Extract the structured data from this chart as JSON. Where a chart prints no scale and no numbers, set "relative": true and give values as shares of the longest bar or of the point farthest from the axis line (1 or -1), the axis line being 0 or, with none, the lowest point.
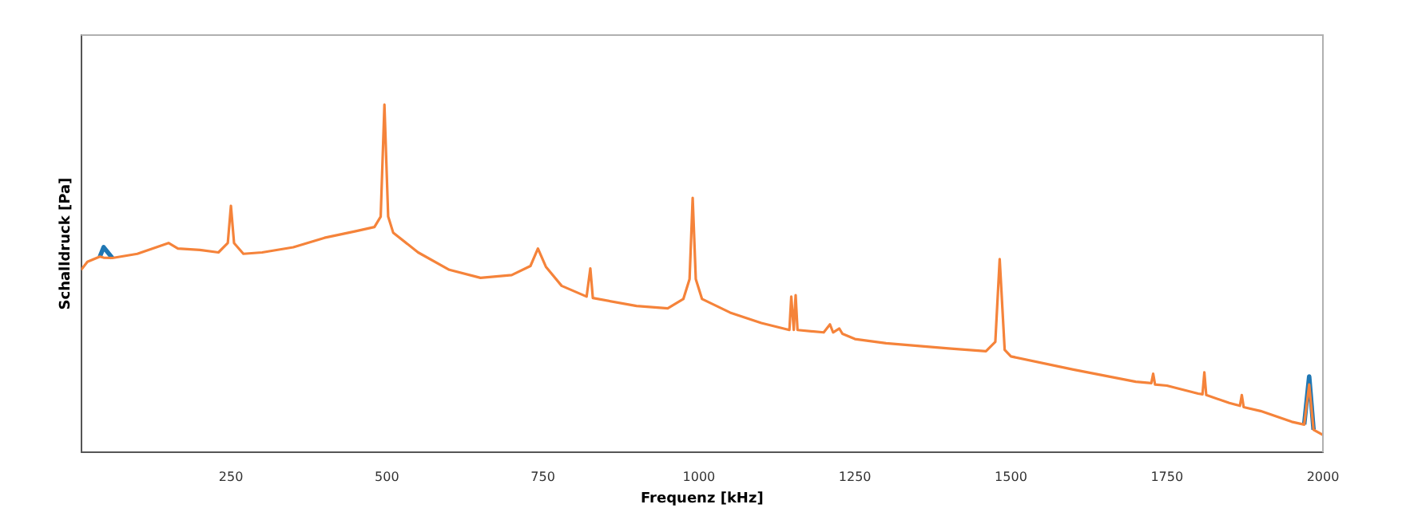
{
  "chart_data": {
    "type": "line",
    "relative": true,
    "xlabel": "Frequenz [kHz]",
    "ylabel": "Schalldruck [Pa]",
    "xlim": [
      10,
      2000
    ],
    "xticks": [
      250,
      500,
      750,
      1000,
      1250,
      1500,
      1750,
      2000
    ],
    "grid": false,
    "legend": false,
    "marker": "none",
    "line_style": "solid",
    "x": [
      10,
      20,
      40,
      46,
      60,
      100,
      150,
      165,
      200,
      230,
      245,
      250,
      255,
      270,
      300,
      350,
      400,
      450,
      480,
      490,
      496,
      502,
      510,
      550,
      600,
      650,
      700,
      730,
      742,
      755,
      780,
      820,
      826,
      830,
      900,
      950,
      975,
      985,
      990,
      995,
      1005,
      1050,
      1100,
      1145,
      1148,
      1152,
      1155,
      1158,
      1200,
      1210,
      1215,
      1225,
      1230,
      1250,
      1300,
      1400,
      1460,
      1475,
      1482,
      1490,
      1500,
      1600,
      1700,
      1725,
      1728,
      1731,
      1750,
      1800,
      1807,
      1810,
      1813,
      1850,
      1867,
      1870,
      1873,
      1900,
      1950,
      1970,
      1978,
      1985,
      2000
    ],
    "series": [
      {
        "color": "#1f77b4",
        "values": [
          null,
          null,
          0.563,
          0.59,
          0.559,
          null,
          null,
          null,
          null,
          null,
          null,
          null,
          null,
          null,
          null,
          null,
          null,
          null,
          null,
          null,
          null,
          null,
          null,
          null,
          null,
          null,
          null,
          null,
          null,
          null,
          null,
          null,
          null,
          null,
          null,
          null,
          null,
          null,
          null,
          null,
          null,
          null,
          null,
          null,
          null,
          null,
          null,
          null,
          null,
          null,
          null,
          null,
          null,
          null,
          null,
          null,
          null,
          null,
          null,
          null,
          null,
          null,
          null,
          null,
          null,
          null,
          null,
          null,
          null,
          null,
          null,
          null,
          null,
          null,
          null,
          null,
          null,
          0.08,
          0.218,
          0.065,
          null
        ]
      },
      {
        "color": "#f5833a",
        "values": [
          0.525,
          0.548,
          0.563,
          0.56,
          0.559,
          0.571,
          0.602,
          0.586,
          0.582,
          0.575,
          0.602,
          0.709,
          0.602,
          0.571,
          0.575,
          0.59,
          0.617,
          0.636,
          0.648,
          0.678,
          1,
          0.678,
          0.632,
          0.575,
          0.525,
          0.502,
          0.51,
          0.536,
          0.586,
          0.533,
          0.479,
          0.448,
          0.529,
          0.444,
          0.421,
          0.414,
          0.441,
          0.498,
          0.732,
          0.498,
          0.441,
          0.402,
          0.372,
          0.352,
          0.448,
          0.352,
          0.452,
          0.352,
          0.345,
          0.368,
          0.345,
          0.356,
          0.341,
          0.326,
          0.314,
          0.299,
          0.291,
          0.318,
          0.556,
          0.295,
          0.276,
          0.238,
          0.203,
          0.199,
          0.226,
          0.195,
          0.192,
          0.169,
          0.167,
          0.23,
          0.165,
          0.142,
          0.134,
          0.165,
          0.13,
          0.119,
          0.088,
          0.08,
          0.195,
          0.065,
          0.05
        ]
      }
    ]
  }
}
